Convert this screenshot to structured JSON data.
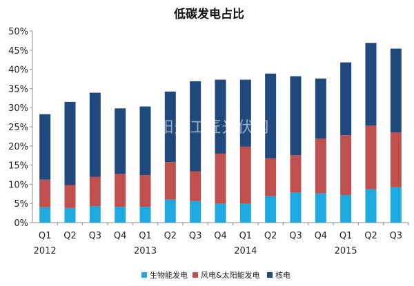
{
  "chart_data": {
    "type": "bar",
    "stacked": true,
    "title": "低碳发电占比",
    "categories": [
      "Q1",
      "Q2",
      "Q3",
      "Q4",
      "Q1",
      "Q2",
      "Q3",
      "Q4",
      "Q1",
      "Q2",
      "Q3",
      "Q4",
      "Q1",
      "Q2",
      "Q3"
    ],
    "year_labels": [
      "2012",
      "2013",
      "2014",
      "2015"
    ],
    "year_label_category_index": [
      0,
      4,
      8,
      12
    ],
    "yticks": [
      "0%",
      "5%",
      "10%",
      "15%",
      "20%",
      "25%",
      "30%",
      "35%",
      "40%",
      "45%",
      "50%"
    ],
    "ylim": [
      0,
      50
    ],
    "grid": false,
    "legend_position": "bottom",
    "series": [
      {
        "name": "生物能发电",
        "color": "#1fa9e1",
        "values": [
          4.0,
          3.8,
          4.3,
          4.1,
          4.1,
          6.0,
          5.6,
          4.9,
          4.9,
          6.9,
          7.8,
          7.6,
          7.2,
          8.7,
          9.2
        ]
      },
      {
        "name": "风电&太阳能发电",
        "color": "#c0504d",
        "values": [
          7.2,
          6.0,
          7.6,
          8.6,
          8.3,
          9.8,
          7.8,
          13.1,
          14.9,
          9.9,
          9.8,
          14.3,
          15.6,
          16.6,
          14.3
        ]
      },
      {
        "name": "核电",
        "color": "#1f497d",
        "values": [
          17.1,
          21.7,
          22.0,
          17.1,
          17.9,
          18.4,
          23.5,
          19.3,
          17.5,
          22.1,
          20.6,
          15.7,
          19.0,
          21.6,
          21.9
        ]
      }
    ],
    "watermark": "阳光工匠光伏网"
  }
}
